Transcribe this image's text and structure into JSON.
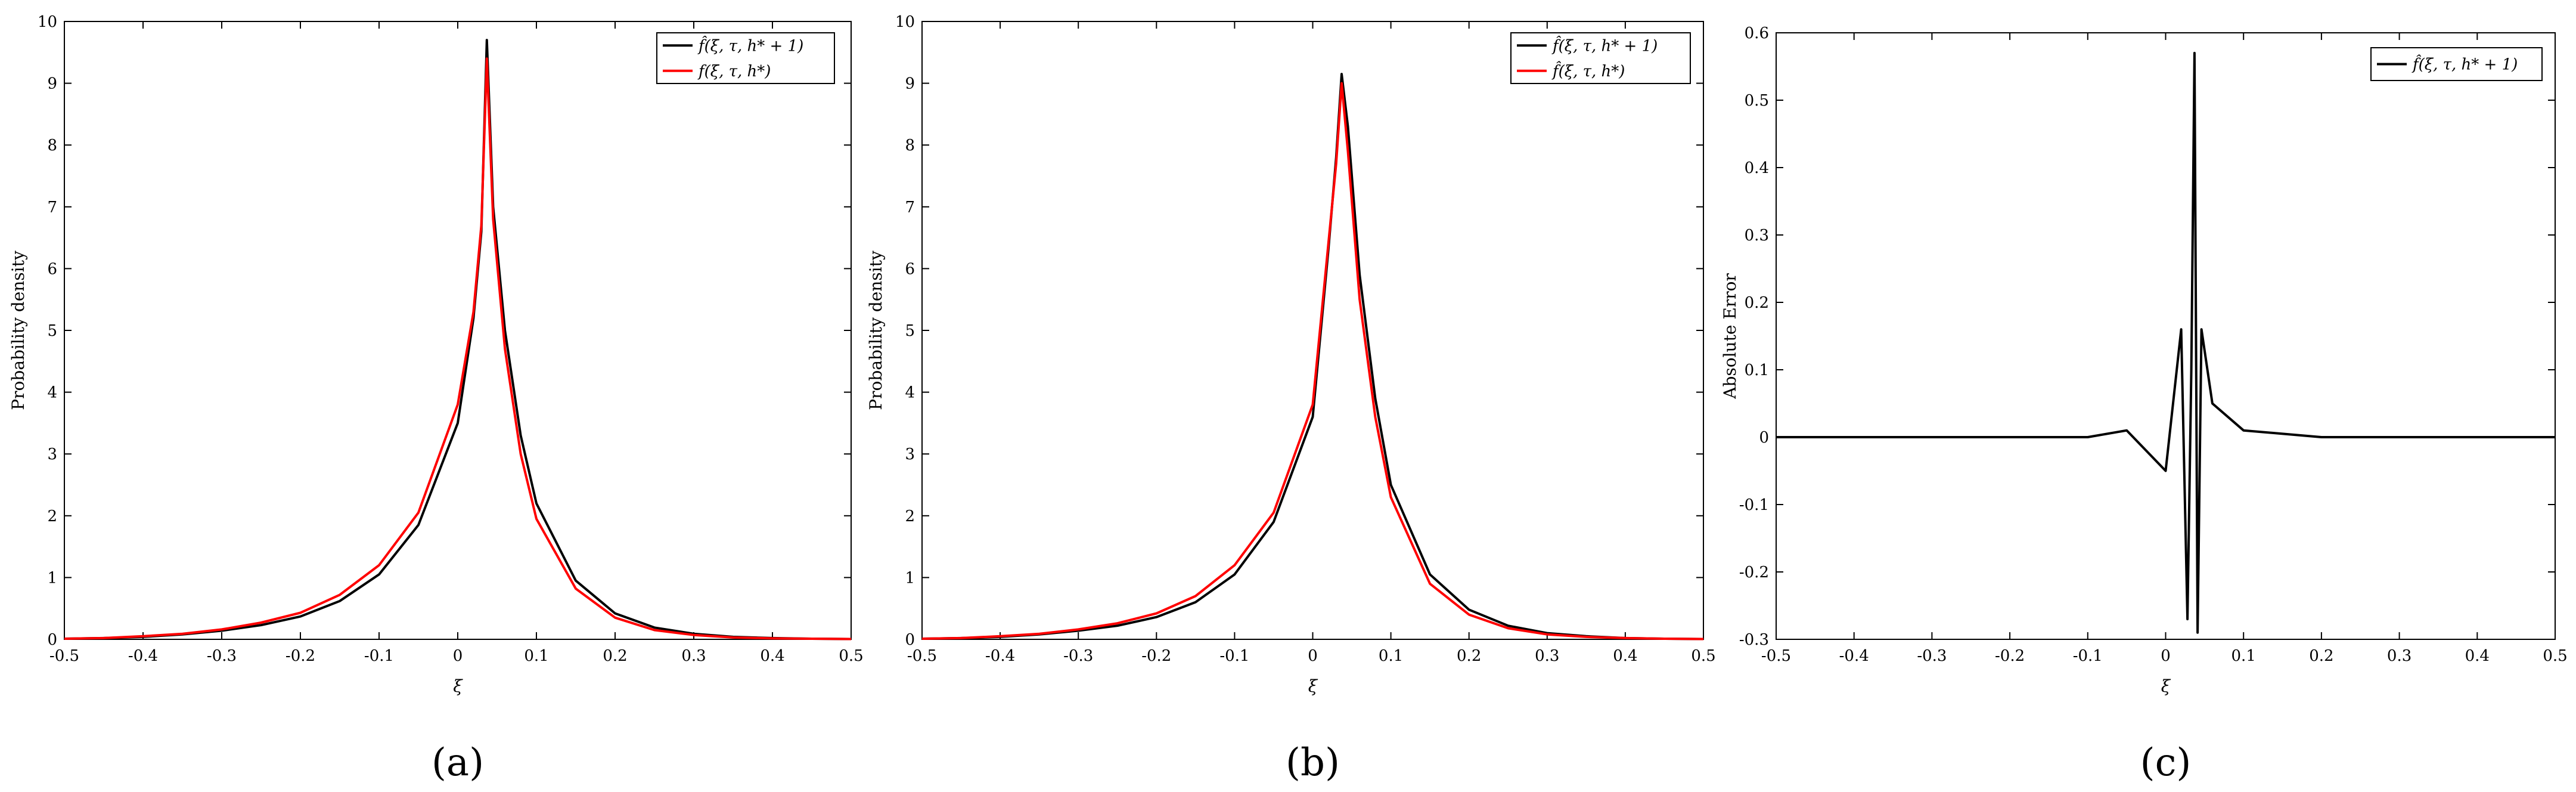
{
  "chart_data": [
    {
      "type": "line",
      "panel_label": "(a)",
      "xlabel": "ξ",
      "ylabel": "Probability density",
      "xlim": [
        -0.5,
        0.5
      ],
      "ylim": [
        0,
        10
      ],
      "xticks": [
        "-0.5",
        "-0.4",
        "-0.3",
        "-0.2",
        "-0.1",
        "0",
        "0.1",
        "0.2",
        "0.3",
        "0.4",
        "0.5"
      ],
      "yticks": [
        "0",
        "1",
        "2",
        "3",
        "4",
        "5",
        "6",
        "7",
        "8",
        "9",
        "10"
      ],
      "legend_position": "top-right",
      "grid": false,
      "series": [
        {
          "name": "f̂(ξ, τ, h* + 1)",
          "color": "#000000",
          "x": [
            -0.5,
            -0.45,
            -0.4,
            -0.35,
            -0.3,
            -0.25,
            -0.2,
            -0.15,
            -0.1,
            -0.05,
            0,
            0.02,
            0.03,
            0.037,
            0.045,
            0.06,
            0.08,
            0.1,
            0.15,
            0.2,
            0.25,
            0.3,
            0.35,
            0.4,
            0.45,
            0.5
          ],
          "y": [
            0.01,
            0.02,
            0.04,
            0.08,
            0.14,
            0.23,
            0.37,
            0.62,
            1.05,
            1.85,
            3.5,
            5.2,
            6.6,
            9.7,
            7.0,
            5.0,
            3.3,
            2.2,
            0.95,
            0.42,
            0.19,
            0.09,
            0.04,
            0.02,
            0.01,
            0.005
          ]
        },
        {
          "name": "f(ξ, τ, h*)",
          "color": "#ff0000",
          "x": [
            -0.5,
            -0.45,
            -0.4,
            -0.35,
            -0.3,
            -0.25,
            -0.2,
            -0.15,
            -0.1,
            -0.05,
            0,
            0.02,
            0.03,
            0.037,
            0.045,
            0.06,
            0.08,
            0.1,
            0.15,
            0.2,
            0.25,
            0.3,
            0.35,
            0.4,
            0.45,
            0.5
          ],
          "y": [
            0.01,
            0.02,
            0.05,
            0.09,
            0.16,
            0.27,
            0.43,
            0.72,
            1.2,
            2.05,
            3.8,
            5.3,
            6.7,
            9.4,
            6.8,
            4.7,
            3.0,
            1.95,
            0.82,
            0.35,
            0.15,
            0.07,
            0.03,
            0.015,
            0.01,
            0.005
          ]
        }
      ]
    },
    {
      "type": "line",
      "panel_label": "(b)",
      "xlabel": "ξ",
      "ylabel": "Probability density",
      "xlim": [
        -0.5,
        0.5
      ],
      "ylim": [
        0,
        10
      ],
      "xticks": [
        "-0.5",
        "-0.4",
        "-0.3",
        "-0.2",
        "-0.1",
        "0",
        "0.1",
        "0.2",
        "0.3",
        "0.4",
        "0.5"
      ],
      "yticks": [
        "0",
        "1",
        "2",
        "3",
        "4",
        "5",
        "6",
        "7",
        "8",
        "9",
        "10"
      ],
      "legend_position": "top-right",
      "grid": false,
      "series": [
        {
          "name": "f̂(ξ, τ, h* + 1)",
          "color": "#000000",
          "x": [
            -0.5,
            -0.45,
            -0.4,
            -0.35,
            -0.3,
            -0.25,
            -0.2,
            -0.15,
            -0.1,
            -0.05,
            0,
            0.02,
            0.03,
            0.037,
            0.045,
            0.06,
            0.08,
            0.1,
            0.15,
            0.2,
            0.25,
            0.3,
            0.35,
            0.4,
            0.45,
            0.5
          ],
          "y": [
            0.01,
            0.02,
            0.04,
            0.08,
            0.14,
            0.22,
            0.36,
            0.6,
            1.05,
            1.9,
            3.6,
            6.3,
            7.8,
            9.15,
            8.3,
            5.9,
            3.9,
            2.5,
            1.05,
            0.48,
            0.22,
            0.1,
            0.05,
            0.02,
            0.01,
            0.005
          ]
        },
        {
          "name": "f̂(ξ, τ, h*)",
          "color": "#ff0000",
          "x": [
            -0.5,
            -0.45,
            -0.4,
            -0.35,
            -0.3,
            -0.25,
            -0.2,
            -0.15,
            -0.1,
            -0.05,
            0,
            0.02,
            0.03,
            0.037,
            0.045,
            0.06,
            0.08,
            0.1,
            0.15,
            0.2,
            0.25,
            0.3,
            0.35,
            0.4,
            0.45,
            0.5
          ],
          "y": [
            0.01,
            0.02,
            0.05,
            0.09,
            0.16,
            0.26,
            0.42,
            0.7,
            1.2,
            2.05,
            3.8,
            6.4,
            7.7,
            9.0,
            7.9,
            5.5,
            3.6,
            2.3,
            0.9,
            0.4,
            0.18,
            0.08,
            0.04,
            0.02,
            0.01,
            0.005
          ]
        }
      ]
    },
    {
      "type": "line",
      "panel_label": "(c)",
      "xlabel": "ξ",
      "ylabel": "Absolute Error",
      "xlim": [
        -0.5,
        0.5
      ],
      "ylim": [
        -0.3,
        0.6
      ],
      "xticks": [
        "-0.5",
        "-0.4",
        "-0.3",
        "-0.2",
        "-0.1",
        "0",
        "0.1",
        "0.2",
        "0.3",
        "0.4",
        "0.5"
      ],
      "yticks": [
        "-0.3",
        "-0.2",
        "-0.1",
        "0",
        "0.1",
        "0.2",
        "0.3",
        "0.4",
        "0.5",
        "0.6"
      ],
      "legend_position": "top-right",
      "grid": false,
      "series": [
        {
          "name": "f̂(ξ, τ, h* + 1)",
          "color": "#000000",
          "x": [
            -0.5,
            -0.4,
            -0.3,
            -0.2,
            -0.1,
            -0.05,
            0,
            0.02,
            0.028,
            0.033,
            0.037,
            0.041,
            0.046,
            0.06,
            0.1,
            0.2,
            0.3,
            0.4,
            0.5
          ],
          "y": [
            0,
            0,
            0,
            0,
            0,
            0.01,
            -0.05,
            0.16,
            -0.27,
            0.1,
            0.57,
            -0.29,
            0.16,
            0.05,
            0.01,
            0,
            0,
            0,
            0
          ]
        }
      ]
    }
  ]
}
